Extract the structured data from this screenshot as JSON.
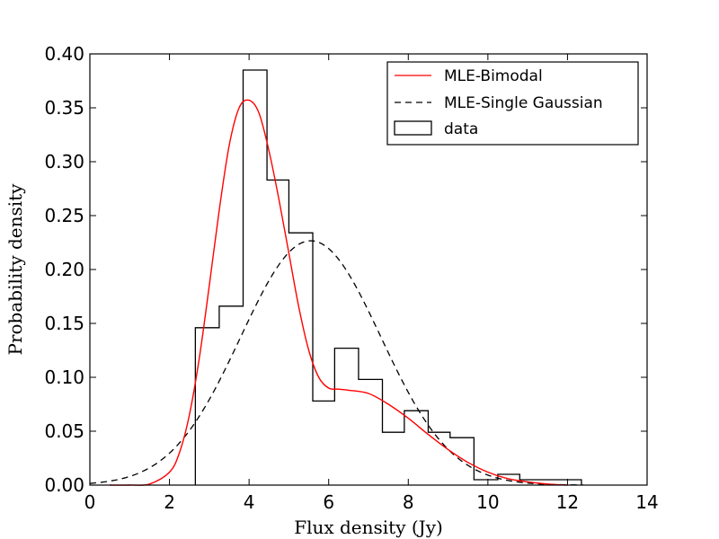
{
  "chart_data": {
    "type": "histogram_with_curves",
    "title": "",
    "xlabel": "Flux density (Jy)",
    "ylabel": "Probability density",
    "xlim": [
      0,
      14
    ],
    "ylim": [
      0,
      0.4
    ],
    "x_ticks": [
      0,
      2,
      4,
      6,
      8,
      10,
      12,
      14
    ],
    "y_ticks": [
      0.0,
      0.05,
      0.1,
      0.15,
      0.2,
      0.25,
      0.3,
      0.35,
      0.4
    ],
    "y_tick_labels": [
      "0.00",
      "0.05",
      "0.10",
      "0.15",
      "0.20",
      "0.25",
      "0.30",
      "0.35",
      "0.40"
    ],
    "x_tick_labels": [
      "0",
      "2",
      "4",
      "6",
      "8",
      "10",
      "12",
      "14"
    ],
    "grid": false,
    "legend_position": "top-right",
    "histogram": {
      "name": "data",
      "bin_edges": [
        2.65,
        3.25,
        3.85,
        4.45,
        5.0,
        5.6,
        6.15,
        6.75,
        7.35,
        7.9,
        8.5,
        9.05,
        9.65,
        10.25,
        10.8,
        12.35
      ],
      "densities": [
        0.146,
        0.166,
        0.385,
        0.283,
        0.234,
        0.078,
        0.127,
        0.098,
        0.049,
        0.069,
        0.049,
        0.044,
        0.005,
        0.01,
        0.005
      ],
      "color": "#000000"
    },
    "series": [
      {
        "name": "MLE-Bimodal",
        "color": "#ff0000",
        "style": "solid",
        "x": [
          0.5,
          1.0,
          1.5,
          2.0,
          2.25,
          2.5,
          2.75,
          3.0,
          3.25,
          3.5,
          3.75,
          4.0,
          4.25,
          4.5,
          4.75,
          5.0,
          5.25,
          5.5,
          5.75,
          6.0,
          6.25,
          6.5,
          7.0,
          7.5,
          8.0,
          8.5,
          9.0,
          9.5,
          10.0,
          10.5,
          11.0,
          11.5,
          12.0
        ],
        "y": [
          0.0,
          0.0,
          0.001,
          0.012,
          0.03,
          0.065,
          0.118,
          0.185,
          0.255,
          0.315,
          0.35,
          0.357,
          0.345,
          0.31,
          0.265,
          0.215,
          0.165,
          0.125,
          0.1,
          0.09,
          0.089,
          0.088,
          0.085,
          0.075,
          0.062,
          0.047,
          0.033,
          0.021,
          0.012,
          0.006,
          0.003,
          0.001,
          0.0
        ]
      },
      {
        "name": "MLE-Single Gaussian",
        "color": "#000000",
        "style": "dashed",
        "mean": 5.55,
        "std": 1.76,
        "x_range": [
          0.0,
          12.4
        ]
      }
    ]
  }
}
